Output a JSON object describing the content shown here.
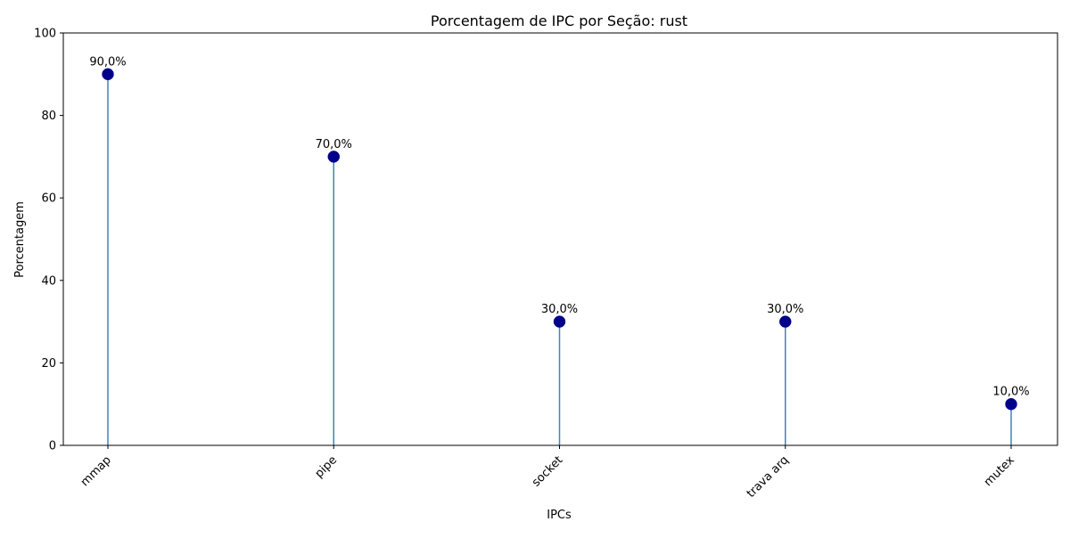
{
  "chart_data": {
    "type": "lollipop",
    "title": "Porcentagem de IPC por Seção: rust",
    "xlabel": "IPCs",
    "ylabel": "Porcentagem",
    "categories": [
      "mmap",
      "pipe",
      "socket",
      "trava arq",
      "mutex"
    ],
    "values": [
      90.0,
      70.0,
      30.0,
      30.0,
      10.0
    ],
    "data_labels": [
      "90,0%",
      "70,0%",
      "30,0%",
      "30,0%",
      "10,0%"
    ],
    "ylim": [
      0,
      100
    ],
    "yticks": [
      0,
      20,
      40,
      60,
      80,
      100
    ],
    "grid": false,
    "legend": "none",
    "colors": {
      "marker": "#00008b",
      "stem": "#4682b4"
    }
  }
}
